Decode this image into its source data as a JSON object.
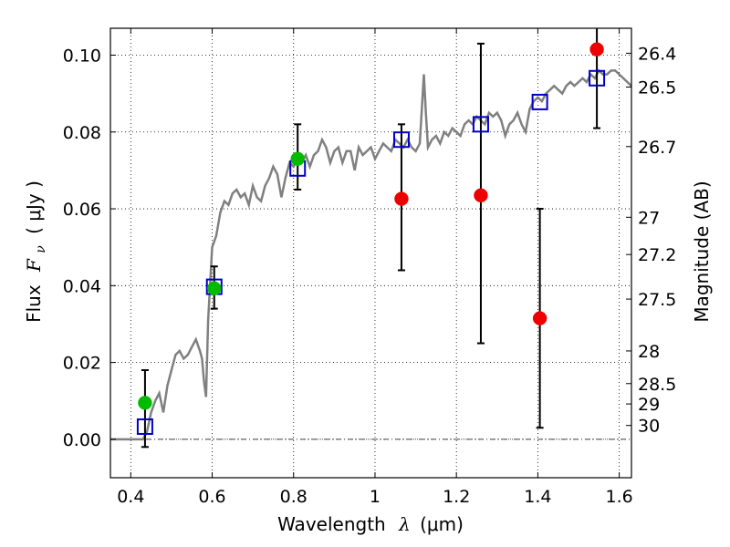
{
  "chart_data": {
    "type": "scatter",
    "xlabel_text": "Wavelength",
    "xlabel_symbol": "λ",
    "xlabel_unit": "(μm)",
    "ylabel_text": "Flux",
    "ylabel_symbol": "F",
    "ylabel_subscript": "ν",
    "ylabel_unit": "( μJy )",
    "y2label": "Magnitude (AB)",
    "xlim": [
      0.35,
      1.63
    ],
    "ylim": [
      -0.01,
      0.107
    ],
    "xticks": [
      0.4,
      0.6,
      0.8,
      1.0,
      1.2,
      1.4,
      1.6
    ],
    "xtick_labels": [
      "0.4",
      "0.6",
      "0.8",
      "1",
      "1.2",
      "1.4",
      "1.6"
    ],
    "yticks": [
      0.0,
      0.02,
      0.04,
      0.06,
      0.08,
      0.1
    ],
    "ytick_labels": [
      "0.00",
      "0.02",
      "0.04",
      "0.06",
      "0.08",
      "0.10"
    ],
    "mag_ticks": [
      {
        "label": "26.4",
        "flux": 0.1005
      },
      {
        "label": "26.5",
        "flux": 0.0917
      },
      {
        "label": "26.7",
        "flux": 0.0762
      },
      {
        "label": "27",
        "flux": 0.0578
      },
      {
        "label": "27.2",
        "flux": 0.0481
      },
      {
        "label": "27.5",
        "flux": 0.0365
      },
      {
        "label": "28",
        "flux": 0.023
      },
      {
        "label": "28.5",
        "flux": 0.0145
      },
      {
        "label": "29",
        "flux": 0.0092
      },
      {
        "label": "30",
        "flux": 0.0036
      }
    ],
    "grid": true,
    "series": [
      {
        "kind": "line",
        "color": "#808080",
        "points": [
          [
            0.35,
            0.0
          ],
          [
            0.43,
            0.0
          ],
          [
            0.44,
            0.002
          ],
          [
            0.45,
            0.007
          ],
          [
            0.46,
            0.01
          ],
          [
            0.47,
            0.012
          ],
          [
            0.48,
            0.007
          ],
          [
            0.49,
            0.014
          ],
          [
            0.5,
            0.018
          ],
          [
            0.51,
            0.022
          ],
          [
            0.52,
            0.023
          ],
          [
            0.53,
            0.021
          ],
          [
            0.54,
            0.022
          ],
          [
            0.55,
            0.024
          ],
          [
            0.56,
            0.026
          ],
          [
            0.57,
            0.023
          ],
          [
            0.575,
            0.021
          ],
          [
            0.58,
            0.015
          ],
          [
            0.585,
            0.011
          ],
          [
            0.59,
            0.031
          ],
          [
            0.6,
            0.05
          ],
          [
            0.61,
            0.053
          ],
          [
            0.62,
            0.059
          ],
          [
            0.63,
            0.062
          ],
          [
            0.64,
            0.061
          ],
          [
            0.65,
            0.064
          ],
          [
            0.66,
            0.065
          ],
          [
            0.67,
            0.063
          ],
          [
            0.68,
            0.064
          ],
          [
            0.69,
            0.061
          ],
          [
            0.7,
            0.066
          ],
          [
            0.71,
            0.063
          ],
          [
            0.72,
            0.062
          ],
          [
            0.73,
            0.066
          ],
          [
            0.74,
            0.068
          ],
          [
            0.75,
            0.071
          ],
          [
            0.76,
            0.069
          ],
          [
            0.77,
            0.063
          ],
          [
            0.78,
            0.068
          ],
          [
            0.79,
            0.072
          ],
          [
            0.8,
            0.071
          ],
          [
            0.81,
            0.073
          ],
          [
            0.82,
            0.072
          ],
          [
            0.83,
            0.074
          ],
          [
            0.84,
            0.071
          ],
          [
            0.85,
            0.074
          ],
          [
            0.86,
            0.075
          ],
          [
            0.87,
            0.078
          ],
          [
            0.88,
            0.076
          ],
          [
            0.89,
            0.072
          ],
          [
            0.9,
            0.075
          ],
          [
            0.91,
            0.076
          ],
          [
            0.92,
            0.072
          ],
          [
            0.93,
            0.075
          ],
          [
            0.94,
            0.075
          ],
          [
            0.95,
            0.07
          ],
          [
            0.96,
            0.076
          ],
          [
            0.97,
            0.074
          ],
          [
            0.98,
            0.075
          ],
          [
            0.99,
            0.076
          ],
          [
            1.0,
            0.073
          ],
          [
            1.01,
            0.075
          ],
          [
            1.02,
            0.077
          ],
          [
            1.03,
            0.076
          ],
          [
            1.04,
            0.075
          ],
          [
            1.05,
            0.078
          ],
          [
            1.06,
            0.077
          ],
          [
            1.07,
            0.076
          ],
          [
            1.08,
            0.078
          ],
          [
            1.09,
            0.076
          ],
          [
            1.1,
            0.075
          ],
          [
            1.11,
            0.077
          ],
          [
            1.115,
            0.086
          ],
          [
            1.12,
            0.095
          ],
          [
            1.125,
            0.085
          ],
          [
            1.13,
            0.076
          ],
          [
            1.14,
            0.078
          ],
          [
            1.15,
            0.079
          ],
          [
            1.16,
            0.077
          ],
          [
            1.17,
            0.08
          ],
          [
            1.18,
            0.079
          ],
          [
            1.19,
            0.081
          ],
          [
            1.2,
            0.08
          ],
          [
            1.21,
            0.079
          ],
          [
            1.22,
            0.082
          ],
          [
            1.23,
            0.083
          ],
          [
            1.24,
            0.082
          ],
          [
            1.25,
            0.084
          ],
          [
            1.26,
            0.083
          ],
          [
            1.27,
            0.082
          ],
          [
            1.28,
            0.085
          ],
          [
            1.29,
            0.084
          ],
          [
            1.3,
            0.085
          ],
          [
            1.31,
            0.083
          ],
          [
            1.32,
            0.079
          ],
          [
            1.33,
            0.082
          ],
          [
            1.34,
            0.083
          ],
          [
            1.35,
            0.085
          ],
          [
            1.36,
            0.082
          ],
          [
            1.37,
            0.08
          ],
          [
            1.38,
            0.086
          ],
          [
            1.39,
            0.088
          ],
          [
            1.4,
            0.089
          ],
          [
            1.41,
            0.088
          ],
          [
            1.42,
            0.09
          ],
          [
            1.43,
            0.091
          ],
          [
            1.44,
            0.092
          ],
          [
            1.45,
            0.091
          ],
          [
            1.46,
            0.09
          ],
          [
            1.47,
            0.092
          ],
          [
            1.48,
            0.093
          ],
          [
            1.49,
            0.092
          ],
          [
            1.5,
            0.093
          ],
          [
            1.51,
            0.094
          ],
          [
            1.52,
            0.093
          ],
          [
            1.53,
            0.095
          ],
          [
            1.54,
            0.094
          ],
          [
            1.55,
            0.096
          ],
          [
            1.56,
            0.095
          ],
          [
            1.57,
            0.095
          ],
          [
            1.58,
            0.096
          ],
          [
            1.59,
            0.096
          ],
          [
            1.6,
            0.095
          ],
          [
            1.61,
            0.094
          ],
          [
            1.62,
            0.093
          ],
          [
            1.63,
            0.092
          ]
        ]
      },
      {
        "kind": "model-squares",
        "color": "#0000cc",
        "points": [
          [
            0.435,
            0.0033
          ],
          [
            0.605,
            0.0397
          ],
          [
            0.81,
            0.0705
          ],
          [
            1.065,
            0.078
          ],
          [
            1.26,
            0.082
          ],
          [
            1.405,
            0.0878
          ],
          [
            1.545,
            0.094
          ]
        ]
      },
      {
        "kind": "points-green",
        "color": "#00bb00",
        "points": [
          [
            0.435,
            0.0095
          ],
          [
            0.605,
            0.0393
          ],
          [
            0.81,
            0.073
          ]
        ]
      },
      {
        "kind": "points-red",
        "color": "#ee0000",
        "points": [
          [
            1.065,
            0.0626
          ],
          [
            1.26,
            0.0635
          ],
          [
            1.405,
            0.0315
          ],
          [
            1.545,
            0.1015
          ]
        ]
      },
      {
        "kind": "errorbars",
        "color": "#000000",
        "bars": [
          {
            "x": 0.435,
            "lo": -0.002,
            "hi": 0.018
          },
          {
            "x": 0.605,
            "lo": 0.034,
            "hi": 0.045
          },
          {
            "x": 0.81,
            "lo": 0.065,
            "hi": 0.082
          },
          {
            "x": 1.065,
            "lo": 0.044,
            "hi": 0.082
          },
          {
            "x": 1.26,
            "lo": 0.025,
            "hi": 0.103
          },
          {
            "x": 1.405,
            "lo": 0.003,
            "hi": 0.06
          },
          {
            "x": 1.545,
            "lo": 0.081,
            "hi": 0.108
          }
        ]
      }
    ]
  }
}
